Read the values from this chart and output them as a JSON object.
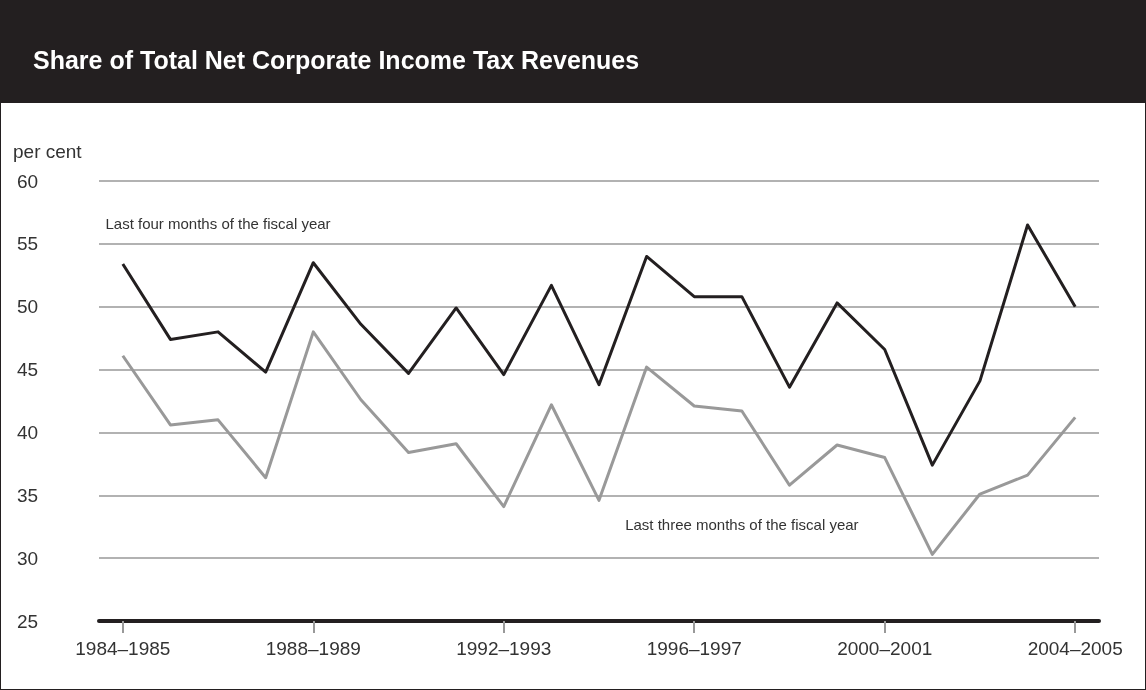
{
  "chart_data": {
    "type": "line",
    "title": "Share of Total Net Corporate Income Tax Revenues",
    "ylabel": "per cent",
    "categories": [
      "1984–1985",
      null,
      null,
      null,
      "1988–1989",
      null,
      null,
      null,
      "1992–1993",
      null,
      null,
      null,
      "1996–1997",
      null,
      null,
      null,
      "2000–2001",
      null,
      null,
      null,
      "2004–2005"
    ],
    "series": [
      {
        "name": "Last four months of the fiscal year",
        "color": "#231f20",
        "values": [
          53.4,
          47.4,
          48.0,
          44.8,
          53.5,
          48.6,
          44.7,
          49.9,
          44.6,
          51.7,
          43.8,
          54.0,
          50.8,
          50.8,
          43.6,
          50.3,
          46.6,
          37.4,
          44.1,
          56.5,
          50.0
        ]
      },
      {
        "name": "Last three months of the fiscal year",
        "color": "#999999",
        "values": [
          46.1,
          40.6,
          41.0,
          36.4,
          48.0,
          42.6,
          38.4,
          39.1,
          34.1,
          42.2,
          34.6,
          45.2,
          42.1,
          41.7,
          35.8,
          39.0,
          38.0,
          30.3,
          35.1,
          36.6,
          41.2
        ]
      }
    ],
    "ylim": [
      25,
      60
    ],
    "yticks": [
      25,
      30,
      35,
      40,
      45,
      50,
      55,
      60
    ],
    "grid": "y",
    "legend": false,
    "marker": "none",
    "line_style": "solid"
  }
}
